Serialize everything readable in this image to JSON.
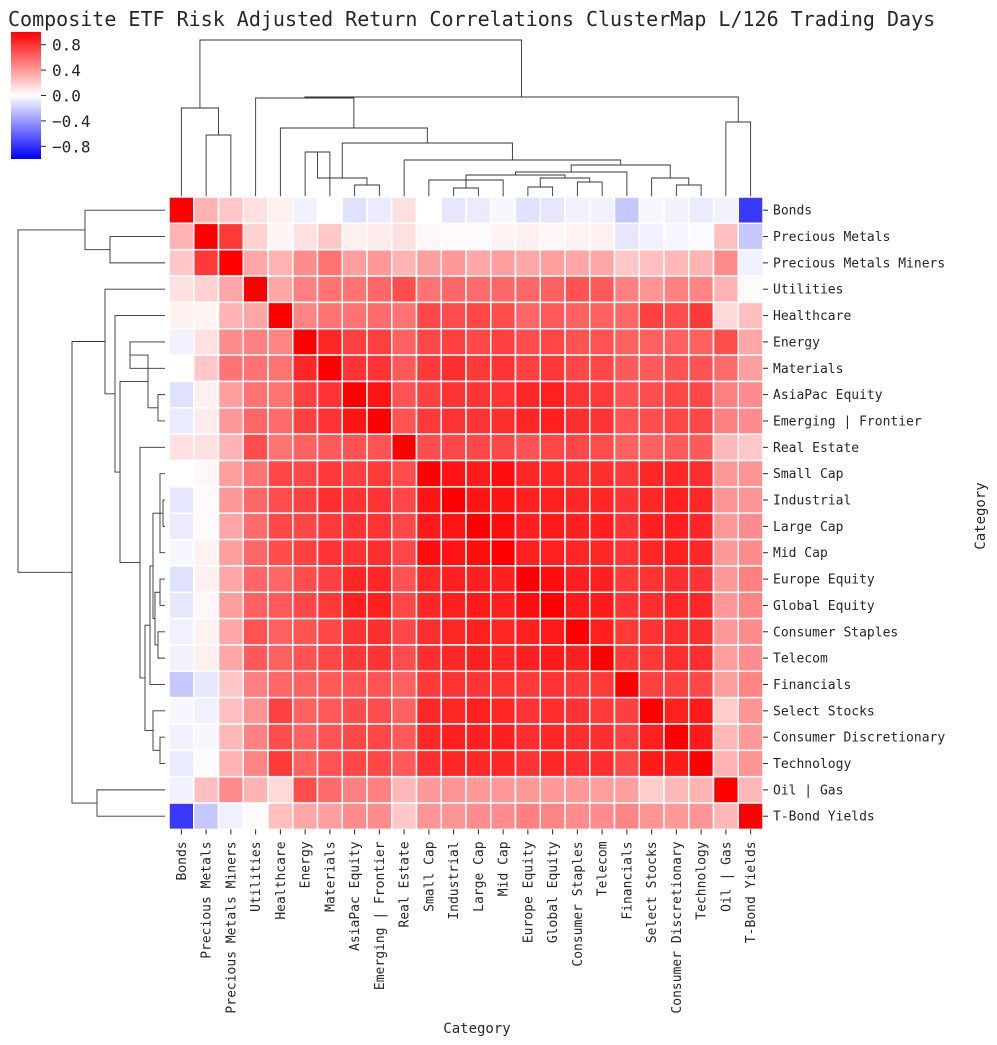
{
  "chart_data": {
    "type": "heatmap",
    "title": "Composite ETF Risk Adjusted Return Correlations ClusterMap L/126 Trading Days",
    "xlabel": "Category",
    "ylabel": "Category",
    "categories": [
      "Bonds",
      "Precious Metals",
      "Precious Metals Miners",
      "Utilities",
      "Healthcare",
      "Energy",
      "Materials",
      "AsiaPac Equity",
      "Emerging | Frontier",
      "Real Estate",
      "Small Cap",
      "Industrial",
      "Large Cap",
      "Mid Cap",
      "Europe Equity",
      "Global Equity",
      "Consumer Staples",
      "Telecom",
      "Financials",
      "Select Stocks",
      "Consumer Discretionary",
      "Technology",
      "Oil | Gas",
      "T-Bond Yields"
    ],
    "colorbar": {
      "min": -1.0,
      "max": 1.0,
      "ticks": [
        0.8,
        0.4,
        0.0,
        -0.4,
        -0.8
      ],
      "tick_labels": [
        "0.8",
        "0.4",
        "0.0",
        "−0.4",
        "−0.8"
      ],
      "cmap": "bwr",
      "colors": {
        "low": "#0000ff",
        "mid": "#ffffff",
        "high": "#ff0000"
      }
    },
    "cell_border_color": "#ffffff",
    "matrix": [
      [
        1.0,
        0.3,
        0.22,
        0.12,
        0.06,
        -0.05,
        0.0,
        -0.12,
        -0.08,
        0.12,
        0.0,
        -0.1,
        -0.08,
        -0.03,
        -0.12,
        -0.1,
        -0.06,
        -0.05,
        -0.22,
        -0.03,
        -0.05,
        -0.08,
        -0.05,
        -0.78
      ],
      [
        0.3,
        1.0,
        0.78,
        0.18,
        0.04,
        0.12,
        0.22,
        0.06,
        0.08,
        0.12,
        0.03,
        0.02,
        0.02,
        0.05,
        0.06,
        0.03,
        0.05,
        0.06,
        -0.1,
        -0.06,
        -0.03,
        -0.02,
        0.25,
        -0.22
      ],
      [
        0.22,
        0.78,
        1.0,
        0.35,
        0.3,
        0.45,
        0.55,
        0.38,
        0.4,
        0.3,
        0.38,
        0.4,
        0.35,
        0.38,
        0.35,
        0.38,
        0.35,
        0.35,
        0.22,
        0.25,
        0.28,
        0.3,
        0.45,
        -0.06
      ],
      [
        0.12,
        0.18,
        0.35,
        1.0,
        0.35,
        0.5,
        0.55,
        0.55,
        0.6,
        0.7,
        0.55,
        0.6,
        0.58,
        0.6,
        0.6,
        0.62,
        0.68,
        0.65,
        0.5,
        0.42,
        0.5,
        0.48,
        0.3,
        0.02
      ],
      [
        0.06,
        0.04,
        0.3,
        0.35,
        1.0,
        0.48,
        0.55,
        0.55,
        0.58,
        0.55,
        0.72,
        0.7,
        0.72,
        0.7,
        0.6,
        0.65,
        0.62,
        0.62,
        0.6,
        0.75,
        0.7,
        0.78,
        0.15,
        0.25
      ],
      [
        -0.05,
        0.12,
        0.45,
        0.5,
        0.48,
        1.0,
        0.85,
        0.75,
        0.75,
        0.62,
        0.72,
        0.75,
        0.72,
        0.75,
        0.7,
        0.72,
        0.68,
        0.68,
        0.62,
        0.62,
        0.62,
        0.62,
        0.7,
        0.35
      ],
      [
        0.0,
        0.22,
        0.55,
        0.55,
        0.55,
        0.85,
        1.0,
        0.8,
        0.8,
        0.65,
        0.78,
        0.82,
        0.78,
        0.8,
        0.75,
        0.78,
        0.72,
        0.72,
        0.65,
        0.65,
        0.68,
        0.68,
        0.58,
        0.38
      ],
      [
        -0.12,
        0.06,
        0.38,
        0.55,
        0.55,
        0.75,
        0.8,
        1.0,
        0.92,
        0.68,
        0.75,
        0.8,
        0.8,
        0.8,
        0.85,
        0.88,
        0.8,
        0.78,
        0.68,
        0.7,
        0.72,
        0.72,
        0.5,
        0.45
      ],
      [
        -0.08,
        0.08,
        0.4,
        0.6,
        0.58,
        0.75,
        0.8,
        0.92,
        1.0,
        0.68,
        0.78,
        0.8,
        0.8,
        0.82,
        0.85,
        0.88,
        0.82,
        0.8,
        0.68,
        0.7,
        0.72,
        0.72,
        0.5,
        0.45
      ],
      [
        0.12,
        0.12,
        0.3,
        0.7,
        0.55,
        0.62,
        0.65,
        0.68,
        0.68,
        1.0,
        0.7,
        0.72,
        0.72,
        0.72,
        0.68,
        0.72,
        0.72,
        0.7,
        0.62,
        0.62,
        0.65,
        0.65,
        0.28,
        0.22
      ],
      [
        0.0,
        0.03,
        0.38,
        0.55,
        0.72,
        0.72,
        0.78,
        0.75,
        0.78,
        0.7,
        1.0,
        0.92,
        0.9,
        0.95,
        0.85,
        0.85,
        0.82,
        0.82,
        0.78,
        0.85,
        0.85,
        0.82,
        0.4,
        0.42
      ],
      [
        -0.1,
        0.02,
        0.4,
        0.6,
        0.7,
        0.75,
        0.82,
        0.8,
        0.8,
        0.72,
        0.92,
        1.0,
        0.92,
        0.92,
        0.88,
        0.88,
        0.85,
        0.85,
        0.8,
        0.85,
        0.88,
        0.85,
        0.42,
        0.42
      ],
      [
        -0.08,
        0.02,
        0.35,
        0.58,
        0.72,
        0.72,
        0.78,
        0.8,
        0.8,
        0.72,
        0.9,
        0.92,
        1.0,
        0.95,
        0.88,
        0.9,
        0.88,
        0.88,
        0.8,
        0.88,
        0.88,
        0.85,
        0.4,
        0.45
      ],
      [
        -0.03,
        0.05,
        0.38,
        0.6,
        0.7,
        0.75,
        0.8,
        0.8,
        0.82,
        0.72,
        0.95,
        0.92,
        0.95,
        1.0,
        0.88,
        0.88,
        0.85,
        0.85,
        0.8,
        0.85,
        0.88,
        0.85,
        0.4,
        0.45
      ],
      [
        -0.12,
        0.06,
        0.35,
        0.6,
        0.6,
        0.7,
        0.75,
        0.85,
        0.85,
        0.68,
        0.85,
        0.88,
        0.88,
        0.88,
        1.0,
        0.95,
        0.88,
        0.88,
        0.78,
        0.8,
        0.82,
        0.8,
        0.4,
        0.5
      ],
      [
        -0.1,
        0.03,
        0.38,
        0.62,
        0.65,
        0.72,
        0.78,
        0.88,
        0.88,
        0.72,
        0.85,
        0.88,
        0.9,
        0.88,
        0.95,
        1.0,
        0.9,
        0.9,
        0.8,
        0.82,
        0.85,
        0.85,
        0.4,
        0.48
      ],
      [
        -0.06,
        0.05,
        0.35,
        0.68,
        0.62,
        0.68,
        0.72,
        0.8,
        0.82,
        0.72,
        0.82,
        0.85,
        0.88,
        0.85,
        0.88,
        0.9,
        1.0,
        0.88,
        0.78,
        0.8,
        0.82,
        0.82,
        0.4,
        0.45
      ],
      [
        -0.05,
        0.06,
        0.35,
        0.65,
        0.62,
        0.68,
        0.72,
        0.78,
        0.8,
        0.7,
        0.82,
        0.85,
        0.88,
        0.85,
        0.88,
        0.9,
        0.88,
        1.0,
        0.78,
        0.78,
        0.82,
        0.82,
        0.38,
        0.45
      ],
      [
        -0.22,
        -0.1,
        0.22,
        0.5,
        0.6,
        0.62,
        0.65,
        0.68,
        0.68,
        0.62,
        0.78,
        0.8,
        0.8,
        0.8,
        0.78,
        0.8,
        0.78,
        0.78,
        1.0,
        0.75,
        0.75,
        0.72,
        0.38,
        0.48
      ],
      [
        -0.03,
        -0.06,
        0.25,
        0.42,
        0.75,
        0.62,
        0.65,
        0.7,
        0.7,
        0.62,
        0.85,
        0.85,
        0.88,
        0.85,
        0.8,
        0.82,
        0.8,
        0.78,
        0.75,
        1.0,
        0.88,
        0.9,
        0.2,
        0.42
      ],
      [
        -0.05,
        -0.03,
        0.28,
        0.5,
        0.7,
        0.62,
        0.68,
        0.72,
        0.72,
        0.65,
        0.85,
        0.88,
        0.88,
        0.88,
        0.82,
        0.85,
        0.82,
        0.82,
        0.75,
        0.88,
        1.0,
        0.9,
        0.28,
        0.4
      ],
      [
        -0.08,
        -0.02,
        0.3,
        0.48,
        0.78,
        0.62,
        0.68,
        0.72,
        0.72,
        0.65,
        0.82,
        0.85,
        0.85,
        0.85,
        0.8,
        0.85,
        0.82,
        0.82,
        0.72,
        0.9,
        0.9,
        1.0,
        0.3,
        0.42
      ],
      [
        -0.05,
        0.25,
        0.45,
        0.3,
        0.15,
        0.7,
        0.58,
        0.5,
        0.5,
        0.28,
        0.4,
        0.42,
        0.4,
        0.4,
        0.4,
        0.4,
        0.4,
        0.38,
        0.38,
        0.2,
        0.28,
        0.3,
        1.0,
        0.28
      ],
      [
        -0.78,
        -0.22,
        -0.06,
        0.02,
        0.25,
        0.35,
        0.38,
        0.45,
        0.45,
        0.22,
        0.42,
        0.42,
        0.45,
        0.45,
        0.5,
        0.48,
        0.45,
        0.45,
        0.48,
        0.42,
        0.4,
        0.42,
        0.28,
        1.0
      ]
    ]
  }
}
